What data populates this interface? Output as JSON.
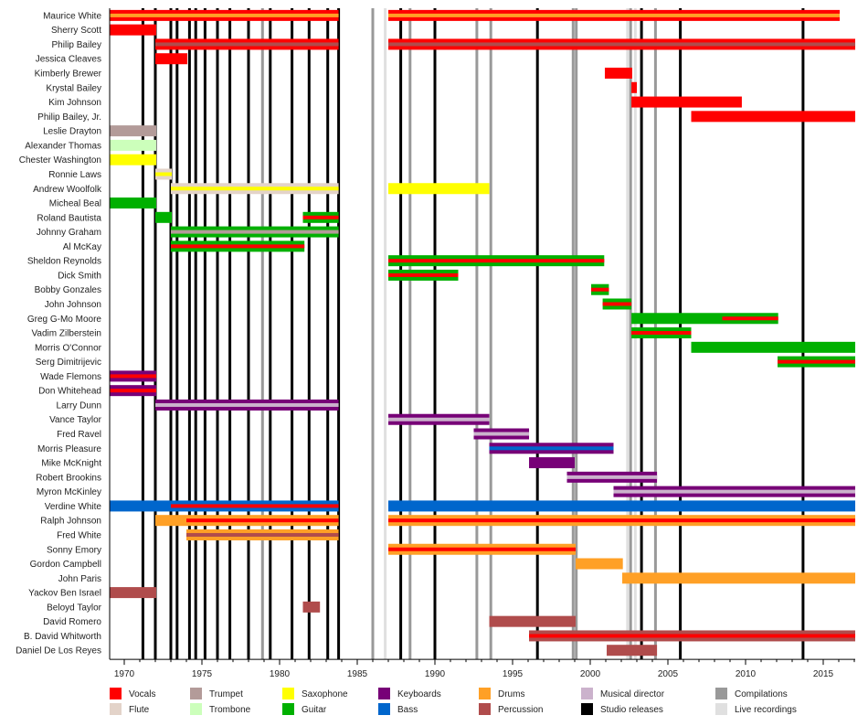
{
  "chart_data": {
    "type": "timeline",
    "title": "",
    "xlabel": "",
    "ylabel": "",
    "xlim": [
      1969.06,
      2017.06
    ],
    "x_ticks_major": [
      1970,
      1975,
      1980,
      1985,
      1990,
      1995,
      2000,
      2005,
      2010,
      2015
    ],
    "x_ticks_minor_step": 1,
    "grid": false,
    "legend_position": "bottom",
    "colors": {
      "Vocals": "#ff0000",
      "Flute": "#e3d3c9",
      "Trumpet": "#b39b99",
      "Trombone": "#ccffbb",
      "Saxophone": "#ffff00",
      "Guitar": "#00b000",
      "Keyboards": "#770077",
      "Bass": "#0066cc",
      "Drums": "#ffa026",
      "Percussion": "#b04c4c",
      "Musical director": "#cbb2cc",
      "Studio releases": "#000000",
      "Compilations": "#999999",
      "Live recordings": "#e0e0e0"
    },
    "legend": [
      [
        "Vocals",
        "Flute"
      ],
      [
        "Trumpet",
        "Trombone"
      ],
      [
        "Saxophone",
        "Guitar"
      ],
      [
        "Keyboards",
        "Bass"
      ],
      [
        "Drums",
        "Percussion"
      ],
      [
        "Musical director",
        "Studio releases"
      ],
      [
        "Compilations",
        "Live recordings"
      ]
    ],
    "members": [
      {
        "name": "Maurice White",
        "bars": [
          {
            "start": 1969.06,
            "end": 1983.8,
            "main": "Vocals",
            "stripe": "Drums"
          },
          {
            "start": 1987.0,
            "end": 2016.06,
            "main": "Vocals",
            "stripe": "Drums"
          }
        ]
      },
      {
        "name": "Sherry Scott",
        "bars": [
          {
            "start": 1969.06,
            "end": 1972.06,
            "main": "Vocals"
          }
        ]
      },
      {
        "name": "Philip Bailey",
        "bars": [
          {
            "start": 1972.0,
            "end": 1983.8,
            "main": "Vocals",
            "stripe": "Percussion"
          },
          {
            "start": 1987.0,
            "end": 2017.06,
            "main": "Vocals",
            "stripe": "Percussion"
          }
        ]
      },
      {
        "name": "Jessica Cleaves",
        "bars": [
          {
            "start": 1972.0,
            "end": 1974.06,
            "main": "Vocals"
          }
        ]
      },
      {
        "name": "Kimberly Brewer",
        "bars": [
          {
            "start": 2000.94,
            "end": 2002.7,
            "main": "Vocals"
          }
        ]
      },
      {
        "name": "Krystal Bailey",
        "bars": [
          {
            "start": 2002.65,
            "end": 2003.0,
            "main": "Vocals"
          }
        ]
      },
      {
        "name": "Kim Johnson",
        "bars": [
          {
            "start": 2002.65,
            "end": 2009.76,
            "main": "Vocals"
          }
        ]
      },
      {
        "name": "Philip Bailey, Jr.",
        "bars": [
          {
            "start": 2006.5,
            "end": 2017.06,
            "main": "Vocals"
          }
        ]
      },
      {
        "name": "Leslie Drayton",
        "bars": [
          {
            "start": 1969.06,
            "end": 1972.06,
            "main": "Trumpet"
          }
        ]
      },
      {
        "name": "Alexander Thomas",
        "bars": [
          {
            "start": 1969.06,
            "end": 1972.06,
            "main": "Trombone"
          }
        ]
      },
      {
        "name": "Chester Washington",
        "bars": [
          {
            "start": 1969.06,
            "end": 1972.06,
            "main": "Saxophone"
          }
        ]
      },
      {
        "name": "Ronnie Laws",
        "bars": [
          {
            "start": 1972.0,
            "end": 1973.06,
            "main": "Flute",
            "stripe": "Saxophone"
          }
        ]
      },
      {
        "name": "Andrew Woolfolk",
        "bars": [
          {
            "start": 1973.0,
            "end": 1983.8,
            "main": "Flute",
            "stripe": "Saxophone"
          },
          {
            "start": 1987.0,
            "end": 1993.5,
            "main": "Saxophone"
          }
        ]
      },
      {
        "name": "Micheal Beal",
        "bars": [
          {
            "start": 1969.06,
            "end": 1972.06,
            "main": "Guitar"
          }
        ]
      },
      {
        "name": "Roland Bautista",
        "bars": [
          {
            "start": 1972.0,
            "end": 1973.06,
            "main": "Guitar"
          },
          {
            "start": 1981.5,
            "end": 1983.8,
            "main": "Guitar",
            "stripe": "Vocals"
          }
        ]
      },
      {
        "name": "Johnny Graham",
        "bars": [
          {
            "start": 1973.0,
            "end": 1983.8,
            "main": "Guitar",
            "stripe": "Trumpet"
          }
        ]
      },
      {
        "name": "Al McKay",
        "bars": [
          {
            "start": 1973.0,
            "end": 1981.6,
            "main": "Guitar",
            "stripe": "Vocals"
          }
        ]
      },
      {
        "name": "Sheldon Reynolds",
        "bars": [
          {
            "start": 1987.0,
            "end": 2000.9,
            "main": "Guitar",
            "stripe": "Vocals"
          }
        ]
      },
      {
        "name": "Dick Smith",
        "bars": [
          {
            "start": 1987.0,
            "end": 1991.5,
            "main": "Guitar",
            "stripe": "Vocals"
          }
        ]
      },
      {
        "name": "Bobby Gonzales",
        "bars": [
          {
            "start": 2000.06,
            "end": 2001.2,
            "main": "Guitar",
            "stripe": "Vocals"
          }
        ]
      },
      {
        "name": "John Johnson",
        "bars": [
          {
            "start": 2000.8,
            "end": 2002.65,
            "main": "Guitar",
            "stripe": "Vocals"
          }
        ]
      },
      {
        "name": "Greg G-Mo Moore",
        "bars": [
          {
            "start": 2002.65,
            "end": 2012.1,
            "main": "Guitar",
            "stripe": "Vocals",
            "stripe_start": 2008.5
          }
        ]
      },
      {
        "name": "Vadim Zilberstein",
        "bars": [
          {
            "start": 2002.65,
            "end": 2006.5,
            "main": "Guitar",
            "stripe": "Vocals"
          }
        ]
      },
      {
        "name": "Morris O'Connor",
        "bars": [
          {
            "start": 2006.5,
            "end": 2017.06,
            "main": "Guitar"
          }
        ]
      },
      {
        "name": "Serg Dimitrijevic",
        "bars": [
          {
            "start": 2012.06,
            "end": 2017.06,
            "main": "Guitar",
            "stripe": "Vocals"
          }
        ]
      },
      {
        "name": "Wade Flemons",
        "bars": [
          {
            "start": 1969.06,
            "end": 1972.06,
            "main": "Keyboards",
            "stripe": "Vocals"
          }
        ]
      },
      {
        "name": "Don Whitehead",
        "bars": [
          {
            "start": 1969.06,
            "end": 1972.06,
            "main": "Keyboards",
            "stripe": "Vocals"
          }
        ]
      },
      {
        "name": "Larry Dunn",
        "bars": [
          {
            "start": 1972.0,
            "end": 1983.8,
            "main": "Keyboards",
            "stripe": "Musical director"
          }
        ]
      },
      {
        "name": "Vance Taylor",
        "bars": [
          {
            "start": 1987.0,
            "end": 1993.5,
            "main": "Keyboards",
            "stripe": "Musical director"
          }
        ]
      },
      {
        "name": "Fred Ravel",
        "bars": [
          {
            "start": 1992.5,
            "end": 1996.06,
            "main": "Keyboards",
            "stripe": "Musical director"
          }
        ]
      },
      {
        "name": "Morris Pleasure",
        "bars": [
          {
            "start": 1993.5,
            "end": 2001.5,
            "main": "Keyboards",
            "stripe": "Bass"
          }
        ]
      },
      {
        "name": "Mike McKnight",
        "bars": [
          {
            "start": 1996.06,
            "end": 1999.0,
            "main": "Keyboards"
          }
        ]
      },
      {
        "name": "Robert Brookins",
        "bars": [
          {
            "start": 1998.5,
            "end": 2004.3,
            "main": "Keyboards",
            "stripe": "Musical director"
          }
        ]
      },
      {
        "name": "Myron McKinley",
        "bars": [
          {
            "start": 2001.5,
            "end": 2017.06,
            "main": "Keyboards",
            "stripe": "Musical director"
          }
        ]
      },
      {
        "name": "Verdine White",
        "bars": [
          {
            "start": 1969.06,
            "end": 1983.8,
            "main": "Bass",
            "stripe": "Vocals",
            "stripe_start": 1973.0
          },
          {
            "start": 1987.0,
            "end": 2017.06,
            "main": "Bass"
          }
        ]
      },
      {
        "name": "Ralph Johnson",
        "bars": [
          {
            "start": 1972.0,
            "end": 1983.8,
            "main": "Drums",
            "stripe": "Vocals",
            "stripe_start": 1974.0
          },
          {
            "start": 1987.0,
            "end": 2017.06,
            "main": "Drums",
            "stripe": "Vocals"
          }
        ]
      },
      {
        "name": "Fred White",
        "bars": [
          {
            "start": 1974.0,
            "end": 1983.8,
            "main": "Drums",
            "stripe": "Percussion"
          }
        ]
      },
      {
        "name": "Sonny Emory",
        "bars": [
          {
            "start": 1987.0,
            "end": 1999.06,
            "main": "Drums",
            "stripe": "Vocals"
          }
        ]
      },
      {
        "name": "Gordon Campbell",
        "bars": [
          {
            "start": 1999.06,
            "end": 2002.1,
            "main": "Drums"
          }
        ]
      },
      {
        "name": "John Paris",
        "bars": [
          {
            "start": 2002.06,
            "end": 2017.06,
            "main": "Drums"
          }
        ]
      },
      {
        "name": "Yackov Ben Israel",
        "bars": [
          {
            "start": 1969.06,
            "end": 1972.06,
            "main": "Percussion"
          }
        ]
      },
      {
        "name": "Beloyd Taylor",
        "bars": [
          {
            "start": 1981.5,
            "end": 1982.6,
            "main": "Percussion"
          }
        ]
      },
      {
        "name": "David Romero",
        "bars": [
          {
            "start": 1993.5,
            "end": 1999.06,
            "main": "Percussion"
          }
        ]
      },
      {
        "name": "B. David Whitworth",
        "bars": [
          {
            "start": 1996.06,
            "end": 2017.06,
            "main": "Percussion",
            "stripe": "Vocals"
          }
        ]
      },
      {
        "name": "Daniel De Los Reyes",
        "bars": [
          {
            "start": 2001.06,
            "end": 2004.3,
            "main": "Percussion"
          }
        ]
      }
    ],
    "releases": {
      "Studio releases": [
        1971.2,
        1972.0,
        1973.0,
        1973.4,
        1974.2,
        1974.6,
        1975.2,
        1976.0,
        1976.8,
        1978.0,
        1979.4,
        1980.8,
        1981.9,
        1983.1,
        1983.8,
        1987.8,
        1990.0,
        1996.6,
        2003.3,
        2005.8,
        2013.7
      ],
      "Compilations": [
        1978.9,
        1986.0,
        1988.4,
        1992.7,
        1993.6,
        1998.9,
        1999.1,
        2002.6,
        2004.2
      ],
      "Live recordings": [
        1986.8,
        2002.4,
        2002.9
      ]
    }
  }
}
